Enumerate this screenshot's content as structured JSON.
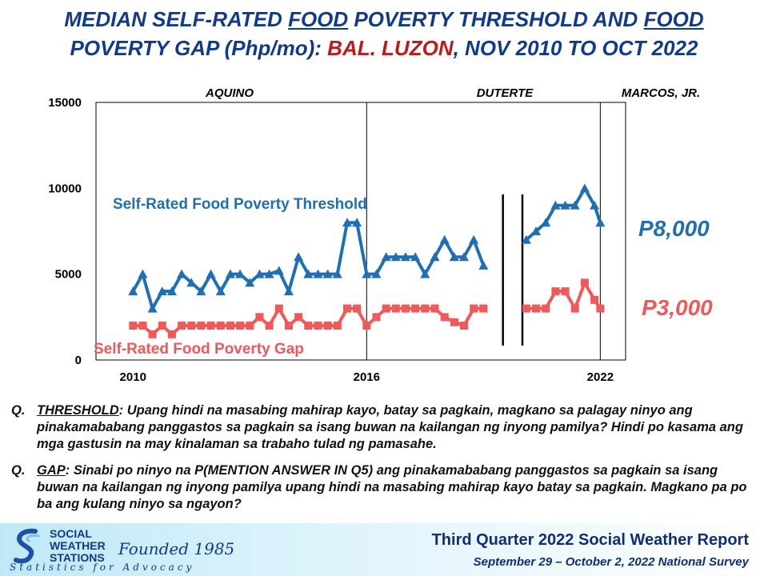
{
  "header": {
    "t1": "MEDIAN SELF-RATED",
    "t2": "FOOD",
    "t3": "POVERTY THRESHOLD AND",
    "t4": "FOOD",
    "t5": "POVERTY GAP (Php/mo):",
    "t6": "BAL. LUZON",
    "t7": ", NOV 2010 TO OCT 2022"
  },
  "chart_data": {
    "type": "line",
    "ylim": [
      0,
      15000
    ],
    "yticks": [
      "0",
      "5000",
      "10000",
      "15000"
    ],
    "xticks": [
      {
        "label": "2010",
        "x": 2010.0
      },
      {
        "label": "2016",
        "x": 2016.0
      },
      {
        "label": "2022",
        "x": 2022.0
      }
    ],
    "xlim": [
      2009.05,
      2022.65
    ],
    "eras": [
      "AQUINO",
      "DUTERTE",
      "MARCOS, JR."
    ],
    "dividers": [
      2016.0,
      2022.0
    ],
    "gap_bars": [
      2019.5,
      2020.0
    ],
    "series": [
      {
        "name": "Self-Rated Food Poverty Threshold",
        "color": "#1f6fb5",
        "end_label": "P8,000",
        "x": [
          2010.0,
          2010.25,
          2010.5,
          2010.75,
          2011.0,
          2011.25,
          2011.5,
          2011.75,
          2012.0,
          2012.25,
          2012.5,
          2012.75,
          2013.0,
          2013.25,
          2013.5,
          2013.75,
          2014.0,
          2014.25,
          2014.5,
          2014.75,
          2015.0,
          2015.25,
          2015.5,
          2015.75,
          2016.0,
          2016.25,
          2016.5,
          2016.75,
          2017.0,
          2017.25,
          2017.5,
          2017.75,
          2018.0,
          2018.25,
          2018.5,
          2018.75,
          2019.0,
          null,
          2020.1,
          2020.35,
          2020.6,
          2020.85,
          2021.1,
          2021.35,
          2021.6,
          2021.85,
          2022.0
        ],
        "values": [
          4000,
          5000,
          3000,
          4000,
          4000,
          5000,
          4500,
          4000,
          5000,
          4000,
          5000,
          5000,
          4500,
          5000,
          5000,
          5200,
          4000,
          6000,
          5000,
          5000,
          5000,
          5000,
          8000,
          8000,
          5000,
          5000,
          6000,
          6000,
          6000,
          6000,
          5000,
          6000,
          7000,
          6000,
          6000,
          7000,
          5500,
          null,
          7000,
          7500,
          8000,
          9000,
          9000,
          9000,
          10000,
          9000,
          8000
        ]
      },
      {
        "name": "Self-Rated Food Poverty Gap",
        "color": "#f0585a",
        "end_label": "P3,000",
        "x": [
          2010.0,
          2010.25,
          2010.5,
          2010.75,
          2011.0,
          2011.25,
          2011.5,
          2011.75,
          2012.0,
          2012.25,
          2012.5,
          2012.75,
          2013.0,
          2013.25,
          2013.5,
          2013.75,
          2014.0,
          2014.25,
          2014.5,
          2014.75,
          2015.0,
          2015.25,
          2015.5,
          2015.75,
          2016.0,
          2016.25,
          2016.5,
          2016.75,
          2017.0,
          2017.25,
          2017.5,
          2017.75,
          2018.0,
          2018.25,
          2018.5,
          2018.75,
          2019.0,
          null,
          2020.1,
          2020.35,
          2020.6,
          2020.85,
          2021.1,
          2021.35,
          2021.6,
          2021.85,
          2022.0
        ],
        "values": [
          2000,
          2000,
          1500,
          2000,
          1500,
          2000,
          2000,
          2000,
          2000,
          2000,
          2000,
          2000,
          2000,
          2500,
          2000,
          3000,
          2000,
          2500,
          2000,
          2000,
          2000,
          2000,
          3000,
          3000,
          2000,
          2500,
          3000,
          3000,
          3000,
          3000,
          3000,
          3000,
          2500,
          2200,
          2000,
          3000,
          3000,
          null,
          3000,
          3000,
          3000,
          4000,
          4000,
          3000,
          4500,
          3500,
          3000
        ]
      }
    ]
  },
  "questions": [
    {
      "q": "Q.",
      "key": "THRESHOLD",
      "text": ": Upang hindi na masabing mahirap kayo, batay sa pagkain, magkano sa palagay ninyo ang pinakamababang panggastos sa pagkain sa isang buwan na kailangan ng inyong pamilya? Hindi po kasama ang mga gastusin na may kinalaman sa trabaho tulad ng pamasahe."
    },
    {
      "q": "Q.",
      "key": "GAP",
      "text": ": Sinabi po ninyo na P(MENTION ANSWER IN Q5) ang pinakamababang panggastos sa pagkain sa isang buwan na kailangan ng inyong pamilya upang hindi na masabing mahirap kayo batay sa pagkain. Magkano pa po ba ang kulang ninyo sa ngayon?"
    }
  ],
  "footer": {
    "org1": "SOCIAL",
    "org2": "WEATHER",
    "org3": "STATIONS",
    "founded": "Founded 1985",
    "motto": "Statistics for Advocacy",
    "report": "Third Quarter 2022 Social Weather Report",
    "survey": "September 29 – October 2, 2022 National Survey"
  },
  "colors": {
    "title": "#123a8c",
    "title_red": "#c0181b",
    "threshold": "#1f6fb5",
    "gap": "#f0585a"
  },
  "icons": {
    "logo": "sws-swirl-logo"
  }
}
